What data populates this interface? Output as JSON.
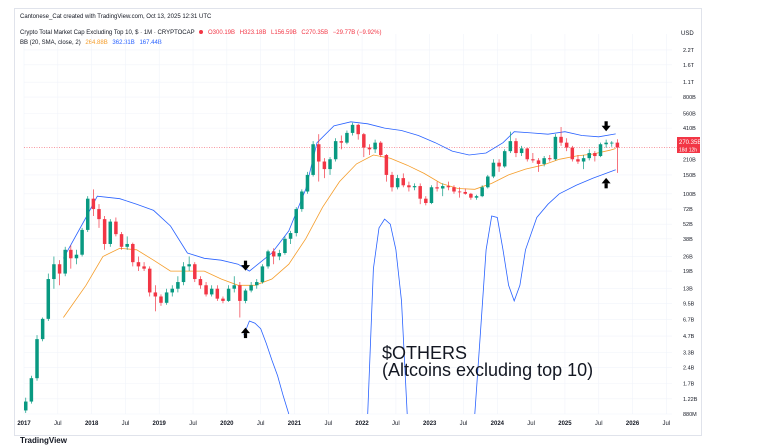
{
  "header": {
    "credit": "Cantonese_Cat created with TradingView.com, Oct 13, 2025 12:31 UTC",
    "symbol_title": "Crypto Total Market Cap Excluding Top 10, $ · 1M · CRYPTOCAP",
    "ohlc": {
      "open": "O300.19B",
      "high": "H323.18B",
      "low": "L156.59B",
      "close": "C270.35B",
      "change": "−29.77B (−9.92%)"
    },
    "bb_label": "BB (20, SMA, close, 2)",
    "bb_values": {
      "basis": "264.88B",
      "upper": "362.31B",
      "lower": "167.44B"
    }
  },
  "annotation": {
    "line1": "$OTHERS",
    "line2": "(Altcoins excluding top 10)"
  },
  "price_tags": {
    "last": "270.35B",
    "countdown": "18d 12h"
  },
  "watermark": "TradingView",
  "colors": {
    "up": "#089981",
    "down": "#f23645",
    "basis": "#f59d2a",
    "bands": "#2962ff",
    "arrow": "#000000",
    "grid": "#f0f3fa"
  },
  "chart_data": {
    "type": "candlestick",
    "symbol": "Crypto Total Market Cap Excluding Top 10, $",
    "interval": "1M",
    "yscale": "log",
    "ylim": [
      "880M",
      "3.1T"
    ],
    "y_unit": "USD",
    "y_ticks": [
      "2.2T",
      "1.6T",
      "1.1T",
      "800B",
      "560B",
      "410B",
      "210B",
      "150B",
      "100B",
      "72B",
      "52B",
      "38B",
      "26B",
      "19B",
      "13B",
      "9.5B",
      "6.7B",
      "4.7B",
      "3.3B",
      "2.4B",
      "1.7B",
      "1.22B",
      "880M"
    ],
    "x_ticks": [
      "2017",
      "Jul",
      "2018",
      "Jul",
      "2019",
      "Jul",
      "2020",
      "Jul",
      "2021",
      "Jul",
      "2022",
      "Jul",
      "2023",
      "Jul",
      "2024",
      "Jul",
      "2025",
      "Jul",
      "2026",
      "Jul"
    ],
    "x_range": [
      "2017-01",
      "2026-08"
    ],
    "candles": [
      [
        "2017-01",
        0.95,
        1.25,
        0.9,
        1.15
      ],
      [
        "2017-02",
        1.15,
        2.0,
        1.1,
        1.9
      ],
      [
        "2017-03",
        1.9,
        4.8,
        1.8,
        4.4
      ],
      [
        "2017-04",
        4.4,
        7.0,
        4.2,
        6.8
      ],
      [
        "2017-05",
        6.8,
        18,
        6.5,
        16
      ],
      [
        "2017-06",
        16,
        26,
        13,
        22
      ],
      [
        "2017-07",
        22,
        24,
        14,
        18
      ],
      [
        "2017-08",
        18,
        32,
        17,
        30
      ],
      [
        "2017-09",
        30,
        33,
        20,
        25
      ],
      [
        "2017-10",
        25,
        30,
        22,
        27
      ],
      [
        "2017-11",
        27,
        48,
        26,
        46
      ],
      [
        "2017-12",
        46,
        95,
        44,
        90
      ],
      [
        "2018-01",
        90,
        110,
        62,
        72
      ],
      [
        "2018-02",
        72,
        80,
        48,
        58
      ],
      [
        "2018-03",
        58,
        62,
        30,
        34
      ],
      [
        "2018-04",
        34,
        58,
        32,
        55
      ],
      [
        "2018-05",
        55,
        60,
        40,
        42
      ],
      [
        "2018-06",
        42,
        44,
        30,
        32
      ],
      [
        "2018-07",
        32,
        40,
        30,
        34
      ],
      [
        "2018-08",
        34,
        35,
        21,
        23
      ],
      [
        "2018-09",
        23,
        26,
        19,
        21
      ],
      [
        "2018-10",
        21,
        23,
        19,
        20
      ],
      [
        "2018-11",
        20,
        21,
        11,
        12
      ],
      [
        "2018-12",
        12,
        14,
        8.0,
        11
      ],
      [
        "2019-01",
        11,
        11.5,
        9.0,
        9.6
      ],
      [
        "2019-02",
        9.6,
        13,
        9.2,
        12
      ],
      [
        "2019-03",
        12,
        14,
        11,
        13
      ],
      [
        "2019-04",
        13,
        17,
        12,
        15
      ],
      [
        "2019-05",
        15,
        23,
        14,
        21
      ],
      [
        "2019-06",
        21,
        26,
        19,
        22
      ],
      [
        "2019-07",
        22,
        23,
        15,
        16
      ],
      [
        "2019-08",
        16,
        17,
        13,
        14
      ],
      [
        "2019-09",
        14,
        15,
        11,
        11.5
      ],
      [
        "2019-10",
        11.5,
        14,
        11,
        13
      ],
      [
        "2019-11",
        13,
        14,
        10,
        10.5
      ],
      [
        "2019-12",
        10.5,
        11,
        9.5,
        10
      ],
      [
        "2020-01",
        10,
        14,
        9.8,
        13
      ],
      [
        "2020-02",
        13,
        17,
        12,
        14
      ],
      [
        "2020-03",
        14,
        15,
        7.0,
        10
      ],
      [
        "2020-04",
        10,
        13,
        9.5,
        12.5
      ],
      [
        "2020-05",
        12.5,
        15,
        12,
        14
      ],
      [
        "2020-06",
        14,
        16,
        13,
        15
      ],
      [
        "2020-07",
        15,
        22,
        14.5,
        21
      ],
      [
        "2020-08",
        21,
        30,
        20,
        29
      ],
      [
        "2020-09",
        29,
        31,
        22,
        26
      ],
      [
        "2020-10",
        26,
        30,
        24,
        28
      ],
      [
        "2020-11",
        28,
        40,
        27,
        38
      ],
      [
        "2020-12",
        38,
        45,
        34,
        43
      ],
      [
        "2021-01",
        43,
        75,
        40,
        72
      ],
      [
        "2021-02",
        72,
        110,
        68,
        105
      ],
      [
        "2021-03",
        105,
        160,
        100,
        150
      ],
      [
        "2021-04",
        150,
        310,
        145,
        290
      ],
      [
        "2021-05",
        290,
        360,
        130,
        200
      ],
      [
        "2021-06",
        200,
        215,
        140,
        170
      ],
      [
        "2021-07",
        170,
        220,
        150,
        210
      ],
      [
        "2021-08",
        210,
        330,
        200,
        310
      ],
      [
        "2021-09",
        310,
        350,
        260,
        300
      ],
      [
        "2021-10",
        300,
        390,
        290,
        370
      ],
      [
        "2021-11",
        370,
        460,
        350,
        440
      ],
      [
        "2021-12",
        440,
        450,
        320,
        360
      ],
      [
        "2022-01",
        360,
        370,
        220,
        270
      ],
      [
        "2022-02",
        270,
        290,
        230,
        260
      ],
      [
        "2022-03",
        260,
        320,
        240,
        300
      ],
      [
        "2022-04",
        300,
        310,
        220,
        230
      ],
      [
        "2022-05",
        230,
        235,
        130,
        150
      ],
      [
        "2022-06",
        150,
        160,
        105,
        115
      ],
      [
        "2022-07",
        115,
        150,
        110,
        140
      ],
      [
        "2022-08",
        140,
        155,
        115,
        120
      ],
      [
        "2022-09",
        120,
        130,
        105,
        115
      ],
      [
        "2022-10",
        115,
        125,
        108,
        118
      ],
      [
        "2022-11",
        118,
        125,
        80,
        90
      ],
      [
        "2022-12",
        90,
        95,
        78,
        82
      ],
      [
        "2023-01",
        82,
        120,
        80,
        115
      ],
      [
        "2023-02",
        115,
        130,
        105,
        112
      ],
      [
        "2023-03",
        112,
        125,
        95,
        118
      ],
      [
        "2023-04",
        118,
        130,
        108,
        115
      ],
      [
        "2023-05",
        115,
        120,
        100,
        105
      ],
      [
        "2023-06",
        105,
        115,
        92,
        104
      ],
      [
        "2023-07",
        104,
        112,
        98,
        100
      ],
      [
        "2023-08",
        100,
        102,
        88,
        92
      ],
      [
        "2023-09",
        92,
        98,
        88,
        95
      ],
      [
        "2023-10",
        95,
        120,
        93,
        115
      ],
      [
        "2023-11",
        115,
        150,
        112,
        145
      ],
      [
        "2023-12",
        145,
        210,
        140,
        195
      ],
      [
        "2024-01",
        195,
        210,
        160,
        180
      ],
      [
        "2024-02",
        180,
        260,
        175,
        250
      ],
      [
        "2024-03",
        250,
        380,
        240,
        310
      ],
      [
        "2024-04",
        310,
        330,
        220,
        240
      ],
      [
        "2024-05",
        240,
        280,
        225,
        265
      ],
      [
        "2024-06",
        265,
        270,
        200,
        210
      ],
      [
        "2024-07",
        210,
        240,
        195,
        205
      ],
      [
        "2024-08",
        205,
        215,
        160,
        190
      ],
      [
        "2024-09",
        190,
        225,
        180,
        215
      ],
      [
        "2024-10",
        215,
        230,
        200,
        210
      ],
      [
        "2024-11",
        210,
        360,
        205,
        340
      ],
      [
        "2024-12",
        340,
        420,
        280,
        300
      ],
      [
        "2025-01",
        300,
        330,
        250,
        270
      ],
      [
        "2025-02",
        270,
        280,
        200,
        210
      ],
      [
        "2025-03",
        210,
        230,
        190,
        200
      ],
      [
        "2025-04",
        200,
        230,
        170,
        215
      ],
      [
        "2025-05",
        215,
        260,
        205,
        240
      ],
      [
        "2025-06",
        240,
        250,
        200,
        225
      ],
      [
        "2025-07",
        225,
        300,
        220,
        290
      ],
      [
        "2025-08",
        290,
        320,
        270,
        300
      ],
      [
        "2025-09",
        300,
        310,
        275,
        300
      ],
      [
        "2025-10",
        300.19,
        323.18,
        156.59,
        270.35
      ]
    ],
    "indicator": "Bollinger Bands (20, SMA, close, 2)",
    "bb_basis": [
      [
        "2017-08",
        7
      ],
      [
        "2017-12",
        14
      ],
      [
        "2018-03",
        26
      ],
      [
        "2018-06",
        31
      ],
      [
        "2018-09",
        30
      ],
      [
        "2018-12",
        24
      ],
      [
        "2019-03",
        19
      ],
      [
        "2019-06",
        19
      ],
      [
        "2019-09",
        19
      ],
      [
        "2019-12",
        16
      ],
      [
        "2020-03",
        14
      ],
      [
        "2020-06",
        14
      ],
      [
        "2020-09",
        16
      ],
      [
        "2020-12",
        22
      ],
      [
        "2021-03",
        38
      ],
      [
        "2021-06",
        75
      ],
      [
        "2021-09",
        130
      ],
      [
        "2021-12",
        190
      ],
      [
        "2022-03",
        230
      ],
      [
        "2022-06",
        215
      ],
      [
        "2022-09",
        185
      ],
      [
        "2022-12",
        155
      ],
      [
        "2023-03",
        125
      ],
      [
        "2023-06",
        112
      ],
      [
        "2023-09",
        110
      ],
      [
        "2023-12",
        125
      ],
      [
        "2024-03",
        150
      ],
      [
        "2024-06",
        170
      ],
      [
        "2024-09",
        185
      ],
      [
        "2024-12",
        210
      ],
      [
        "2025-03",
        225
      ],
      [
        "2025-06",
        235
      ],
      [
        "2025-09",
        255
      ],
      [
        "2025-10",
        264.88
      ]
    ],
    "bb_upper": [
      [
        "2017-08",
        25
      ],
      [
        "2017-12",
        60
      ],
      [
        "2018-02",
        95
      ],
      [
        "2018-06",
        90
      ],
      [
        "2018-09",
        80
      ],
      [
        "2018-12",
        70
      ],
      [
        "2019-03",
        50
      ],
      [
        "2019-06",
        28
      ],
      [
        "2019-09",
        25
      ],
      [
        "2019-12",
        24
      ],
      [
        "2020-03",
        22
      ],
      [
        "2020-05",
        19
      ],
      [
        "2020-09",
        28
      ],
      [
        "2020-12",
        45
      ],
      [
        "2021-03",
        110
      ],
      [
        "2021-05",
        300
      ],
      [
        "2021-08",
        430
      ],
      [
        "2021-11",
        470
      ],
      [
        "2022-02",
        450
      ],
      [
        "2022-05",
        410
      ],
      [
        "2022-08",
        390
      ],
      [
        "2022-11",
        350
      ],
      [
        "2023-02",
        300
      ],
      [
        "2023-05",
        250
      ],
      [
        "2023-08",
        230
      ],
      [
        "2023-11",
        240
      ],
      [
        "2024-02",
        300
      ],
      [
        "2024-04",
        380
      ],
      [
        "2024-07",
        370
      ],
      [
        "2024-10",
        360
      ],
      [
        "2025-01",
        380
      ],
      [
        "2025-04",
        350
      ],
      [
        "2025-07",
        340
      ],
      [
        "2025-10",
        362.31
      ]
    ],
    "bb_lower": [
      [
        "2020-04",
        4.8
      ],
      [
        "2020-05",
        6.5
      ],
      [
        "2020-06",
        6.2
      ],
      [
        "2020-07",
        5.5
      ],
      [
        "2020-08",
        4.0
      ],
      [
        "2020-09",
        2.8
      ],
      [
        "2020-10",
        2.0
      ],
      [
        "2020-11",
        1.3
      ],
      [
        "2020-12",
        0.88
      ],
      null,
      [
        "2022-02",
        0.88
      ],
      [
        "2022-03",
        20
      ],
      [
        "2022-04",
        48
      ],
      [
        "2022-05",
        58
      ],
      [
        "2022-06",
        52
      ],
      [
        "2022-07",
        30
      ],
      [
        "2022-08",
        10
      ],
      [
        "2022-09",
        0.88
      ],
      null,
      [
        "2023-09",
        0.88
      ],
      [
        "2023-10",
        5
      ],
      [
        "2023-11",
        30
      ],
      [
        "2023-12",
        62
      ],
      [
        "2024-01",
        60
      ],
      [
        "2024-02",
        30
      ],
      [
        "2024-03",
        14
      ],
      [
        "2024-04",
        10
      ],
      [
        "2024-05",
        14
      ],
      [
        "2024-06",
        30
      ],
      [
        "2024-08",
        60
      ],
      [
        "2024-10",
        80
      ],
      [
        "2024-12",
        100
      ],
      [
        "2025-03",
        120
      ],
      [
        "2025-06",
        140
      ],
      [
        "2025-09",
        160
      ],
      [
        "2025-10",
        167.44
      ]
    ],
    "markers": [
      {
        "type": "arrow-down",
        "x": "2020-04",
        "y": 20
      },
      {
        "type": "arrow-up",
        "x": "2020-04",
        "y": 5.4
      },
      {
        "type": "arrow-down",
        "x": "2025-08",
        "y": 400
      },
      {
        "type": "arrow-up",
        "x": "2025-08",
        "y": 135
      }
    ],
    "last_price_line": 270.35,
    "legend": "top-left"
  }
}
